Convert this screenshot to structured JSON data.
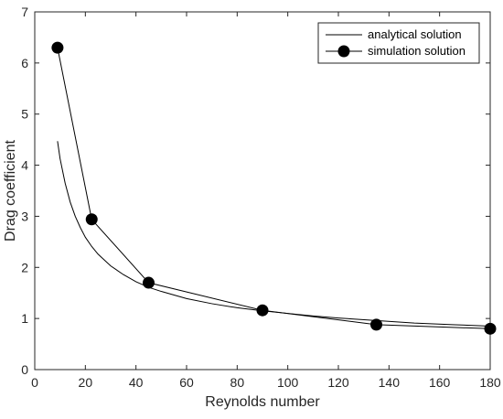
{
  "chart_data": {
    "type": "line",
    "xlabel": "Reynolds number",
    "ylabel": "Drag coefficient",
    "xlim": [
      0,
      180
    ],
    "ylim": [
      0,
      7
    ],
    "xticks": [
      0,
      20,
      40,
      60,
      80,
      100,
      120,
      140,
      160,
      180
    ],
    "yticks": [
      0,
      1,
      2,
      3,
      4,
      5,
      6,
      7
    ],
    "grid": false,
    "legend_position": "top-right",
    "series": [
      {
        "name": "analytical solution",
        "style": "line",
        "color": "#000000",
        "x": [
          9,
          10,
          12,
          14,
          16,
          18,
          20,
          22.5,
          25,
          30,
          35,
          40,
          45,
          50,
          60,
          70,
          80,
          90,
          100,
          110,
          120,
          135,
          150,
          165,
          180
        ],
        "y": [
          4.47,
          4.13,
          3.65,
          3.28,
          3.0,
          2.78,
          2.59,
          2.41,
          2.26,
          2.03,
          1.86,
          1.72,
          1.61,
          1.53,
          1.39,
          1.29,
          1.21,
          1.15,
          1.1,
          1.05,
          1.01,
          0.96,
          0.91,
          0.88,
          0.85
        ]
      },
      {
        "name": "simulation solution",
        "style": "line-marker",
        "color": "#000000",
        "x": [
          9,
          22.5,
          45,
          90,
          135,
          180
        ],
        "y": [
          6.3,
          2.94,
          1.7,
          1.16,
          0.88,
          0.8
        ]
      }
    ]
  }
}
